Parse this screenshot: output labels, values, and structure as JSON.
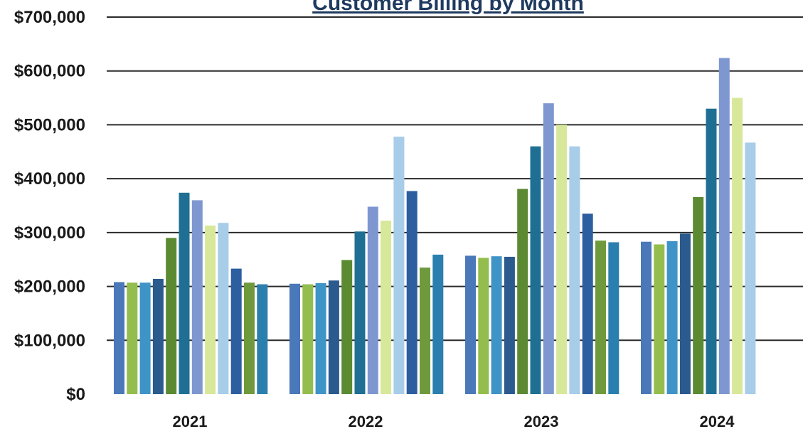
{
  "chart_data": {
    "type": "bar",
    "title": "Customer Billing by Month",
    "categories": [
      "2021",
      "2022",
      "2023",
      "2024"
    ],
    "ylim": [
      0,
      700000
    ],
    "y_tick_labels": [
      "$0",
      "$100,000",
      "$200,000",
      "$300,000",
      "$400,000",
      "$500,000",
      "$600,000",
      "$700,000"
    ],
    "y_tick_values": [
      0,
      100000,
      200000,
      300000,
      400000,
      500000,
      600000,
      700000
    ],
    "grid": true,
    "legend": "none",
    "series": [
      {
        "values": [
          208000,
          205000,
          257000,
          283000
        ]
      },
      {
        "values": [
          207000,
          204000,
          253000,
          278000
        ]
      },
      {
        "values": [
          207000,
          206000,
          256000,
          284000
        ]
      },
      {
        "values": [
          214000,
          211000,
          255000,
          298000
        ]
      },
      {
        "values": [
          290000,
          249000,
          381000,
          366000
        ]
      },
      {
        "values": [
          374000,
          302000,
          460000,
          530000
        ]
      },
      {
        "values": [
          360000,
          348000,
          540000,
          624000
        ]
      },
      {
        "values": [
          313000,
          322000,
          500000,
          550000
        ]
      },
      {
        "values": [
          318000,
          478000,
          460000,
          467000
        ]
      },
      {
        "values": [
          233000,
          377000,
          335000,
          null
        ]
      },
      {
        "values": [
          207000,
          235000,
          285000,
          null
        ]
      },
      {
        "values": [
          204000,
          259000,
          282000,
          null
        ]
      }
    ],
    "series_colors": [
      "#4a78b8",
      "#93bd4c",
      "#3f94c7",
      "#2b5a8e",
      "#5b8a33",
      "#1f6f94",
      "#7f97d0",
      "#d7e89a",
      "#a7cde9",
      "#2d5ea0",
      "#6e9a3d",
      "#2b7fae"
    ]
  }
}
